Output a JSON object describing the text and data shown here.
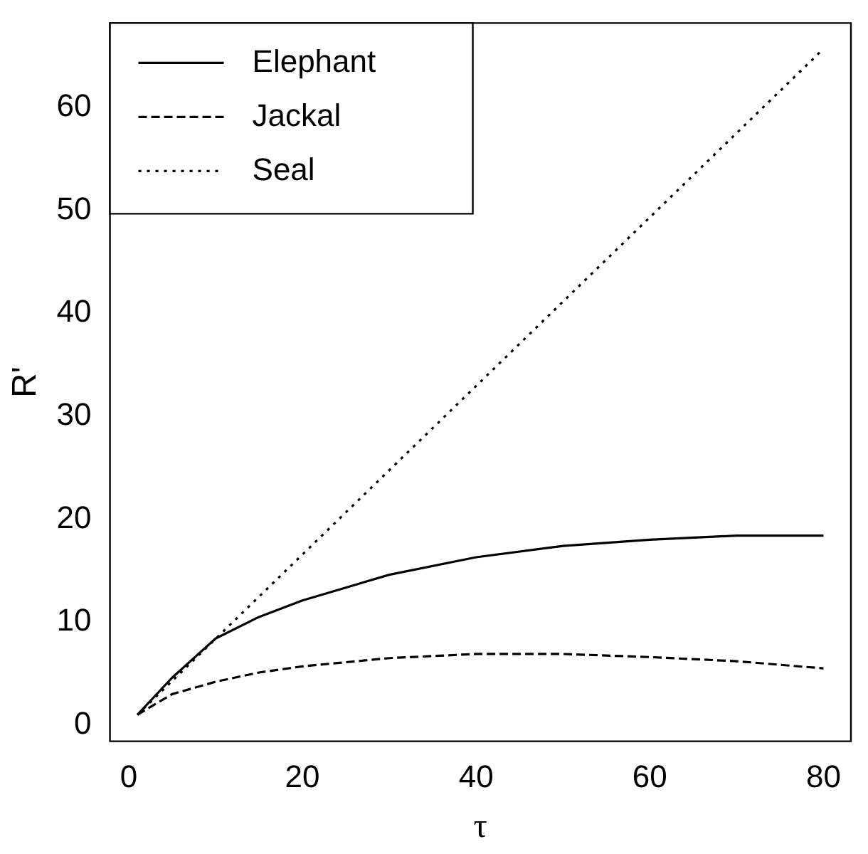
{
  "chart_data": {
    "type": "line",
    "xlabel": "τ",
    "ylabel": "R'",
    "xlim": [
      -2.16,
      83.16
    ],
    "ylim": [
      -1.58,
      68.2
    ],
    "xticks": [
      0,
      20,
      40,
      60,
      80
    ],
    "yticks": [
      0,
      10,
      20,
      30,
      40,
      50,
      60
    ],
    "grid": false,
    "legend": "top left",
    "marker": "none",
    "series": [
      {
        "name": "Elephant",
        "color": "#000000",
        "line_style": "solid",
        "x": [
          1,
          5,
          10,
          15,
          20,
          30,
          40,
          50,
          60,
          70,
          80
        ],
        "values": [
          1,
          4.6,
          8.4,
          10.5,
          12.1,
          14.6,
          16.3,
          17.4,
          18.0,
          18.4,
          18.4
        ]
      },
      {
        "name": "Jackal",
        "color": "#000000",
        "line_style": "dashed",
        "x": [
          1,
          5,
          10,
          15,
          20,
          30,
          40,
          50,
          60,
          70,
          80
        ],
        "values": [
          1,
          3.0,
          4.2,
          5.1,
          5.7,
          6.5,
          6.9,
          6.9,
          6.6,
          6.2,
          5.5
        ]
      },
      {
        "name": "Seal",
        "color": "#000000",
        "line_style": "dotted",
        "x": [
          1,
          80
        ],
        "values": [
          1,
          65.7
        ]
      }
    ]
  }
}
